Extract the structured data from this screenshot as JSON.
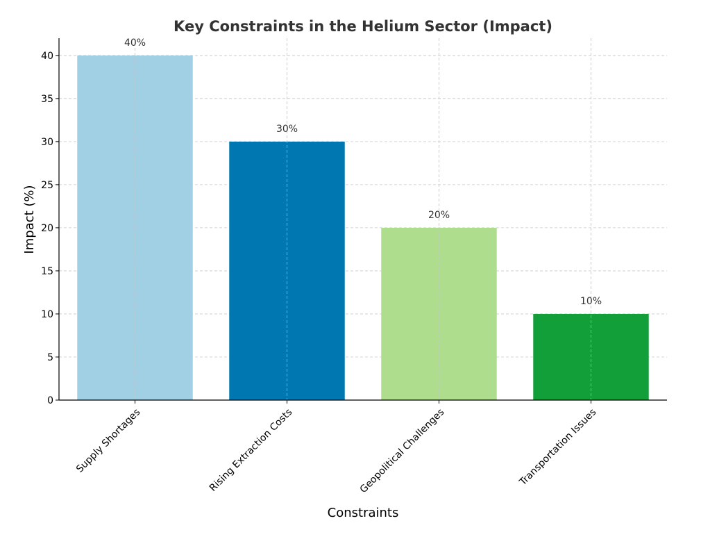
{
  "chart_data": {
    "type": "bar",
    "title": "Key Constraints in the Helium Sector (Impact)",
    "xlabel": "Constraints",
    "ylabel": "Impact (%)",
    "categories": [
      "Supply Shortages",
      "Rising Extraction Costs",
      "Geopolitical Challenges",
      "Transportation Issues"
    ],
    "values": [
      40,
      30,
      20,
      10
    ],
    "data_labels": [
      "40%",
      "30%",
      "20%",
      "10%"
    ],
    "colors": [
      "#a1cfe3",
      "#0077b0",
      "#aedd8e",
      "#129e39"
    ],
    "ylim": [
      0,
      42
    ],
    "yticks": [
      0,
      5,
      10,
      15,
      20,
      25,
      30,
      35,
      40
    ],
    "grid": true,
    "legend": "none"
  },
  "styles": {
    "text_color": "#333333",
    "grid_color": "#c8c8c8",
    "axis_color": "#000000"
  }
}
